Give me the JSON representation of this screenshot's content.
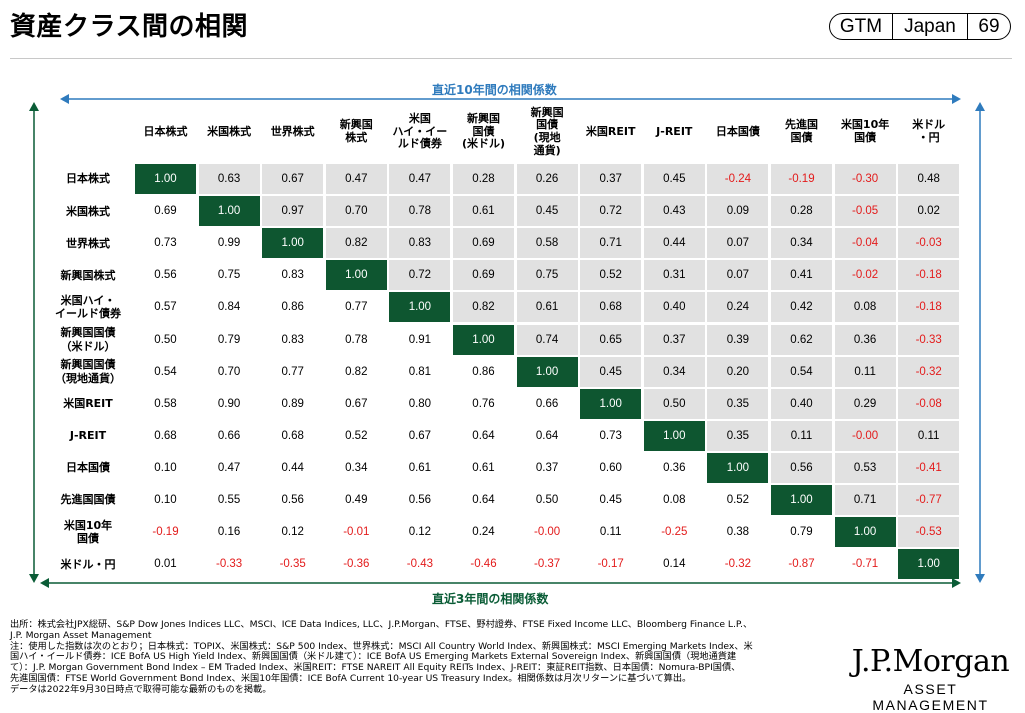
{
  "header": {
    "title": "資産クラス間の相関",
    "badge": [
      "GTM",
      "Japan",
      "69"
    ]
  },
  "colors": {
    "diagonal": "#0e5630",
    "upper": "#e1e1e1",
    "negative": "#e31b1b",
    "top_arrow": "#2f7bbd",
    "bottom_arrow": "#0a5c36"
  },
  "icons": {
    "top": "double-arrow-horizontal-icon",
    "bottom": "double-arrow-horizontal-icon",
    "left": "double-arrow-vertical-icon",
    "right": "double-arrow-vertical-icon"
  },
  "chart_data": {
    "type": "table",
    "top_label": "直近10年間の相関係数",
    "bottom_label": "直近3年間の相関係数",
    "columns": [
      "日本株式",
      "米国株式",
      "世界株式",
      "新興国\n株式",
      "米国\nハイ・イー\nルド債券",
      "新興国\n国債\n(米ドル)",
      "新興国\n国債\n(現地\n通貨)",
      "米国REIT",
      "J-REIT",
      "日本国債",
      "先進国\n国債",
      "米国10年\n国債",
      "米ドル\n・円"
    ],
    "rows": [
      "日本株式",
      "米国株式",
      "世界株式",
      "新興国株式",
      "米国ハイ・\nイールド債券",
      "新興国国債\n（米ドル）",
      "新興国国債\n（現地通貨）",
      "米国REIT",
      "J-REIT",
      "日本国債",
      "先進国国債",
      "米国10年\n国債",
      "米ドル・円"
    ],
    "values": [
      [
        "1.00",
        "0.63",
        "0.67",
        "0.47",
        "0.47",
        "0.28",
        "0.26",
        "0.37",
        "0.45",
        "-0.24",
        "-0.19",
        "-0.30",
        "0.48"
      ],
      [
        "0.69",
        "1.00",
        "0.97",
        "0.70",
        "0.78",
        "0.61",
        "0.45",
        "0.72",
        "0.43",
        "0.09",
        "0.28",
        "-0.05",
        "0.02"
      ],
      [
        "0.73",
        "0.99",
        "1.00",
        "0.82",
        "0.83",
        "0.69",
        "0.58",
        "0.71",
        "0.44",
        "0.07",
        "0.34",
        "-0.04",
        "-0.03"
      ],
      [
        "0.56",
        "0.75",
        "0.83",
        "1.00",
        "0.72",
        "0.69",
        "0.75",
        "0.52",
        "0.31",
        "0.07",
        "0.41",
        "-0.02",
        "-0.18"
      ],
      [
        "0.57",
        "0.84",
        "0.86",
        "0.77",
        "1.00",
        "0.82",
        "0.61",
        "0.68",
        "0.40",
        "0.24",
        "0.42",
        "0.08",
        "-0.18"
      ],
      [
        "0.50",
        "0.79",
        "0.83",
        "0.78",
        "0.91",
        "1.00",
        "0.74",
        "0.65",
        "0.37",
        "0.39",
        "0.62",
        "0.36",
        "-0.33"
      ],
      [
        "0.54",
        "0.70",
        "0.77",
        "0.82",
        "0.81",
        "0.86",
        "1.00",
        "0.45",
        "0.34",
        "0.20",
        "0.54",
        "0.11",
        "-0.32"
      ],
      [
        "0.58",
        "0.90",
        "0.89",
        "0.67",
        "0.80",
        "0.76",
        "0.66",
        "1.00",
        "0.50",
        "0.35",
        "0.40",
        "0.29",
        "-0.08"
      ],
      [
        "0.68",
        "0.66",
        "0.68",
        "0.52",
        "0.67",
        "0.64",
        "0.64",
        "0.73",
        "1.00",
        "0.35",
        "0.11",
        "-0.00",
        "0.11"
      ],
      [
        "0.10",
        "0.47",
        "0.44",
        "0.34",
        "0.61",
        "0.61",
        "0.37",
        "0.60",
        "0.36",
        "1.00",
        "0.56",
        "0.53",
        "-0.41"
      ],
      [
        "0.10",
        "0.55",
        "0.56",
        "0.49",
        "0.56",
        "0.64",
        "0.50",
        "0.45",
        "0.08",
        "0.52",
        "1.00",
        "0.71",
        "-0.77"
      ],
      [
        "-0.19",
        "0.16",
        "0.12",
        "-0.01",
        "0.12",
        "0.24",
        "-0.00",
        "0.11",
        "-0.25",
        "0.38",
        "0.79",
        "1.00",
        "-0.53"
      ],
      [
        "0.01",
        "-0.33",
        "-0.35",
        "-0.36",
        "-0.43",
        "-0.46",
        "-0.37",
        "-0.17",
        "0.14",
        "-0.32",
        "-0.87",
        "-0.71",
        "1.00"
      ]
    ]
  },
  "footnote": "出所：株式会社JPX総研、S&P Dow Jones Indices LLC、MSCI、ICE Data Indices, LLC、J.P.Morgan、FTSE、野村證券、FTSE Fixed Income LLC、Bloomberg Finance L.P.、\nJ.P. Morgan Asset Management\n注：使用した指数は次のとおり；日本株式：TOPIX、米国株式：S&P 500 Index、世界株式：MSCI All Country World Index、新興国株式：MSCI Emerging Markets Index、米\n国ハイ・イールド債券：ICE BofA US High Yield Index、新興国国債（米ドル建て）：ICE BofA US Emerging Markets External Sovereign Index、新興国国債（現地通貨建\nて）：J.P. Morgan Government Bond Index – EM Traded Index、米国REIT：FTSE NAREIT All Equity REITs Index、J-REIT：東証REIT指数、日本国債：Nomura-BPI国債、\n先進国国債：FTSE World Government Bond Index、米国10年国債：ICE BofA Current 10-year US Treasury Index。相関係数は月次リターンに基づいて算出。\nデータは2022年9月30日時点で取得可能な最新のものを掲載。",
  "logo": {
    "line1": "J.P.Morgan",
    "line2": "ASSET MANAGEMENT"
  }
}
